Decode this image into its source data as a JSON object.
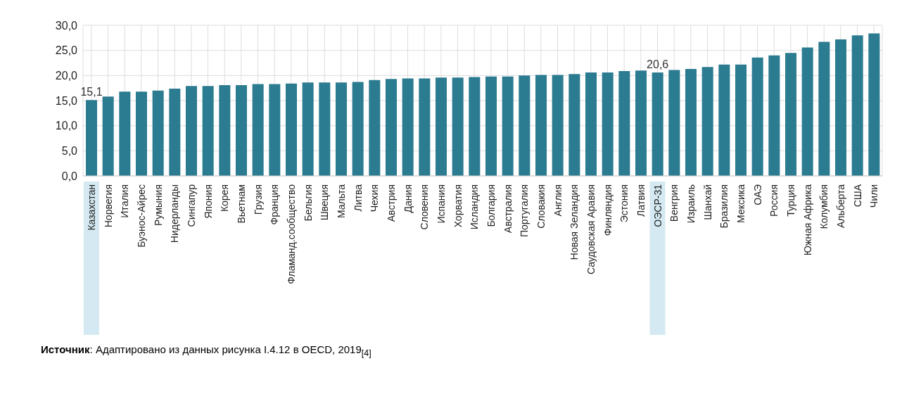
{
  "chart_data": {
    "type": "bar",
    "categories": [
      "Казахстан",
      "Норвегия",
      "Италия",
      "Буэнос-Айрес",
      "Румыния",
      "Нидерланды",
      "Сингапур",
      "Япония",
      "Корея",
      "Вьетнам",
      "Грузия",
      "Франция",
      "Фламанд.сообщество",
      "Бельгия",
      "Швеция",
      "Мальта",
      "Литва",
      "Чехия",
      "Австрия",
      "Дания",
      "Словения",
      "Испания",
      "Хорватия",
      "Исландия",
      "Болгария",
      "Австралия",
      "Португалия",
      "Словакия",
      "Англия",
      "Новая Зеландия",
      "Саудовская Аравия",
      "Финляндия",
      "Эстония",
      "Латвия",
      "ОЭСР-31",
      "Венгрия",
      "Израиль",
      "Шанхай",
      "Бразилия",
      "Мексика",
      "ОАЭ",
      "Россия",
      "Турция",
      "Южная Африка",
      "Колумбия",
      "Альберта",
      "США",
      "Чили"
    ],
    "values": [
      15.1,
      15.8,
      16.8,
      16.8,
      17.0,
      17.4,
      17.9,
      17.9,
      18.1,
      18.1,
      18.3,
      18.3,
      18.4,
      18.6,
      18.6,
      18.6,
      18.7,
      19.1,
      19.3,
      19.4,
      19.4,
      19.6,
      19.6,
      19.7,
      19.8,
      19.8,
      20.0,
      20.1,
      20.1,
      20.3,
      20.6,
      20.6,
      20.9,
      21.0,
      20.6,
      21.1,
      21.3,
      21.7,
      22.2,
      22.2,
      23.6,
      24.0,
      24.5,
      25.6,
      26.7,
      27.2,
      28.0,
      28.4
    ],
    "value_labels": [
      "15,1",
      null,
      null,
      null,
      null,
      null,
      null,
      null,
      null,
      null,
      null,
      null,
      null,
      null,
      null,
      null,
      null,
      null,
      null,
      null,
      null,
      null,
      null,
      null,
      null,
      null,
      null,
      null,
      null,
      null,
      null,
      null,
      null,
      null,
      "20,6",
      null,
      null,
      null,
      null,
      null,
      null,
      null,
      null,
      null,
      null,
      null,
      null,
      null
    ],
    "color": "#2b7b91",
    "ylim": [
      0,
      30
    ],
    "yticks": [
      {
        "value": 0,
        "label": "0,0"
      },
      {
        "value": 5,
        "label": "5,0"
      },
      {
        "value": 10,
        "label": "10,0"
      },
      {
        "value": 15,
        "label": "15,0"
      },
      {
        "value": 20,
        "label": "20,0"
      },
      {
        "value": 25,
        "label": "25,0"
      },
      {
        "value": 30,
        "label": "30,0"
      }
    ],
    "grid": true,
    "annotations": [
      "Источник: Адаптировано из данных рисунка I.4.12 в OECD, 2019$_{[4]}$"
    ]
  }
}
